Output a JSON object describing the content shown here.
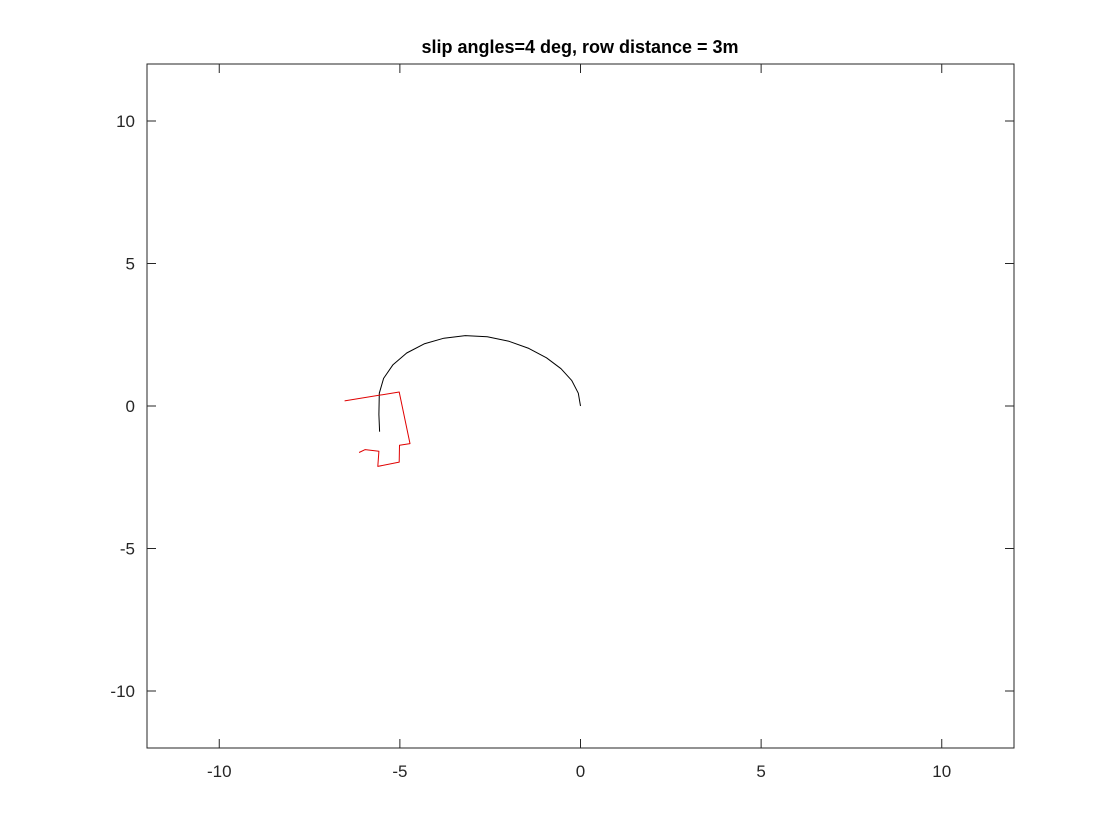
{
  "chart_data": {
    "type": "line",
    "title": "slip angles=4 deg, row distance = 3m",
    "xlabel": "",
    "ylabel": "",
    "xlim": [
      -12,
      12
    ],
    "ylim": [
      -12,
      12
    ],
    "xticks": [
      -10,
      -5,
      0,
      5,
      10
    ],
    "yticks": [
      -10,
      -5,
      0,
      5,
      10
    ],
    "xtick_labels": [
      "-10",
      "-5",
      "0",
      "5",
      "10"
    ],
    "ytick_labels": [
      "-10",
      "-5",
      "0",
      "5",
      "10"
    ],
    "grid": false,
    "legend": "none",
    "series": [
      {
        "color": "#000000",
        "x": [
          0.0,
          -0.06,
          -0.24,
          -0.54,
          -0.94,
          -1.43,
          -1.98,
          -2.58,
          -3.19,
          -3.78,
          -4.33,
          -4.81,
          -5.19,
          -5.45,
          -5.57,
          -5.58,
          -5.56
        ],
        "y": [
          0.0,
          0.45,
          0.89,
          1.31,
          1.69,
          2.02,
          2.27,
          2.43,
          2.47,
          2.38,
          2.18,
          1.86,
          1.45,
          0.97,
          0.45,
          -0.3,
          -0.9
        ]
      },
      {
        "color": "#e00000",
        "x": [
          -6.53,
          -5.02,
          -4.72,
          -5.01,
          -5.02,
          -5.61,
          -5.58,
          -5.96,
          -6.13
        ],
        "y": [
          0.18,
          0.49,
          -1.32,
          -1.38,
          -1.97,
          -2.12,
          -1.59,
          -1.53,
          -1.63
        ]
      }
    ]
  }
}
